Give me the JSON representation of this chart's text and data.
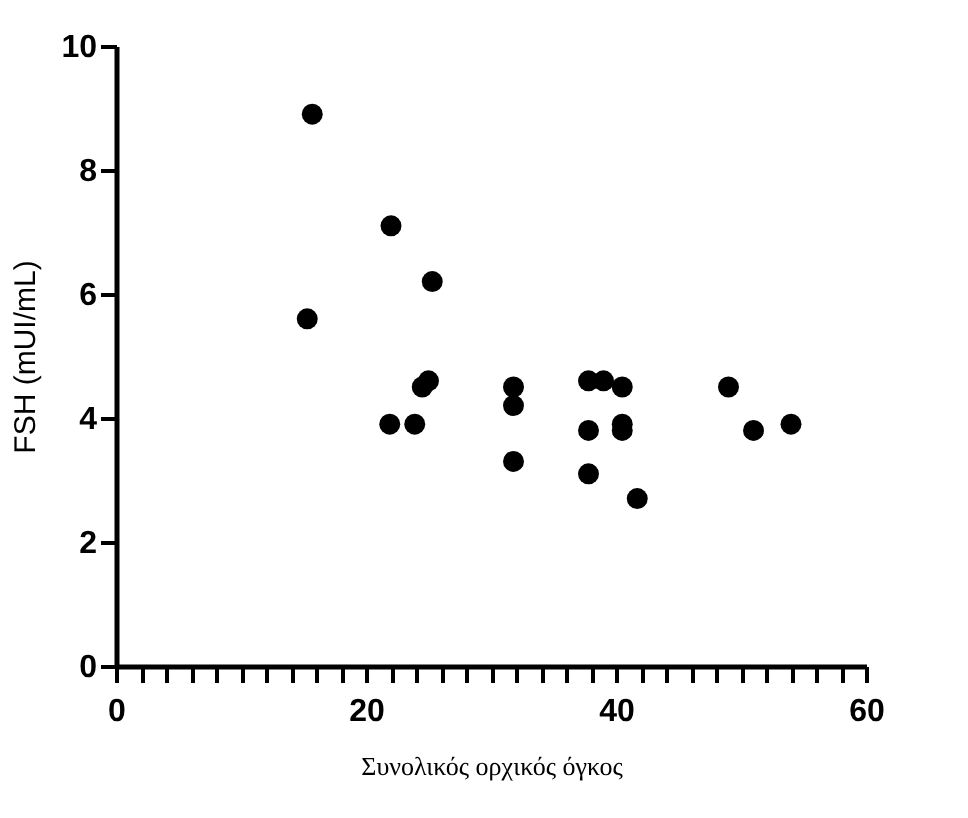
{
  "chart_data": {
    "type": "scatter",
    "xlabel": "Συνολικός ορχικός όγκος",
    "ylabel": "FSH (mUI/mL)",
    "x": [
      15.7,
      15.3,
      22.0,
      21.9,
      25.3,
      23.9,
      24.5,
      25.0,
      31.8,
      31.8,
      31.8,
      37.8,
      39.0,
      40.5,
      37.8,
      37.8,
      40.5,
      40.5,
      41.7,
      49.0,
      51.0,
      54.0
    ],
    "series": [
      {
        "color": "#000000",
        "values": [
          8.9,
          5.6,
          7.1,
          3.9,
          6.2,
          3.9,
          4.5,
          4.6,
          4.5,
          4.2,
          3.3,
          4.6,
          4.6,
          4.5,
          3.8,
          3.1,
          3.9,
          3.8,
          2.7,
          4.5,
          3.8,
          3.9
        ]
      }
    ],
    "xlim": [
      0,
      60
    ],
    "xticks": [
      0,
      {
        "value": 2,
        "label": null
      },
      {
        "value": 4,
        "label": null
      },
      {
        "value": 6,
        "label": null
      },
      {
        "value": 8,
        "label": null
      },
      {
        "value": 10,
        "label": null
      },
      {
        "value": 12,
        "label": null
      },
      {
        "value": 14,
        "label": null
      },
      {
        "value": 16,
        "label": null
      },
      {
        "value": 18,
        "label": null
      },
      20,
      {
        "value": 22,
        "label": null
      },
      {
        "value": 24,
        "label": null
      },
      {
        "value": 26,
        "label": null
      },
      {
        "value": 28,
        "label": null
      },
      {
        "value": 30,
        "label": null
      },
      {
        "value": 32,
        "label": null
      },
      {
        "value": 34,
        "label": null
      },
      {
        "value": 36,
        "label": null
      },
      {
        "value": 38,
        "label": null
      },
      40,
      {
        "value": 42,
        "label": null
      },
      {
        "value": 44,
        "label": null
      },
      {
        "value": 46,
        "label": null
      },
      {
        "value": 48,
        "label": null
      },
      {
        "value": 50,
        "label": null
      },
      {
        "value": 52,
        "label": null
      },
      {
        "value": 54,
        "label": null
      },
      {
        "value": 56,
        "label": null
      },
      {
        "value": 58,
        "label": null
      },
      60
    ],
    "ylim": [
      0,
      10
    ],
    "yticks": [
      0,
      2,
      4,
      6,
      8,
      10
    ],
    "grid": false,
    "marker": "circle"
  }
}
